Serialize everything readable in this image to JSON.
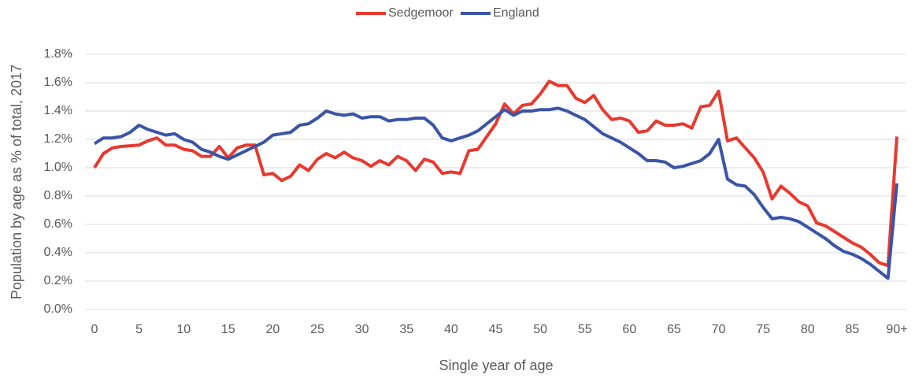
{
  "chart_data": {
    "type": "line",
    "x_label": "Single year of age",
    "y_label": "Population by age as % of total, 2017",
    "categories": [
      "0",
      null,
      null,
      null,
      null,
      "5",
      null,
      null,
      null,
      null,
      "10",
      null,
      null,
      null,
      null,
      "15",
      null,
      null,
      null,
      null,
      "20",
      null,
      null,
      null,
      null,
      "25",
      null,
      null,
      null,
      null,
      "30",
      null,
      null,
      null,
      null,
      "35",
      null,
      null,
      null,
      null,
      "40",
      null,
      null,
      null,
      null,
      "45",
      null,
      null,
      null,
      null,
      "50",
      null,
      null,
      null,
      null,
      "55",
      null,
      null,
      null,
      null,
      "60",
      null,
      null,
      null,
      null,
      "65",
      null,
      null,
      null,
      null,
      "70",
      null,
      null,
      null,
      null,
      "75",
      null,
      null,
      null,
      null,
      "80",
      null,
      null,
      null,
      null,
      "85",
      null,
      null,
      null,
      null,
      "90+"
    ],
    "series": [
      {
        "name": "Sedgemoor",
        "color": "#e8392f",
        "values": [
          1.0,
          1.1,
          1.14,
          1.15,
          1.155,
          1.16,
          1.19,
          1.21,
          1.16,
          1.16,
          1.13,
          1.12,
          1.08,
          1.08,
          1.15,
          1.07,
          1.14,
          1.16,
          1.16,
          0.95,
          0.96,
          0.91,
          0.94,
          1.02,
          0.98,
          1.06,
          1.1,
          1.07,
          1.11,
          1.07,
          1.05,
          1.01,
          1.05,
          1.02,
          1.08,
          1.05,
          0.98,
          1.06,
          1.04,
          0.96,
          0.97,
          0.96,
          1.12,
          1.13,
          1.22,
          1.31,
          1.45,
          1.38,
          1.44,
          1.45,
          1.52,
          1.61,
          1.58,
          1.58,
          1.49,
          1.46,
          1.51,
          1.41,
          1.34,
          1.35,
          1.33,
          1.25,
          1.26,
          1.33,
          1.3,
          1.3,
          1.31,
          1.28,
          1.43,
          1.44,
          1.54,
          1.19,
          1.21,
          1.14,
          1.07,
          0.97,
          0.78,
          0.87,
          0.82,
          0.76,
          0.73,
          0.61,
          0.59,
          0.55,
          0.51,
          0.47,
          0.44,
          0.39,
          0.33,
          0.31,
          1.22
        ]
      },
      {
        "name": "England",
        "color": "#3a54a6",
        "values": [
          1.17,
          1.21,
          1.21,
          1.22,
          1.25,
          1.3,
          1.27,
          1.25,
          1.23,
          1.24,
          1.2,
          1.18,
          1.13,
          1.11,
          1.08,
          1.06,
          1.09,
          1.12,
          1.15,
          1.18,
          1.23,
          1.24,
          1.25,
          1.3,
          1.31,
          1.35,
          1.4,
          1.38,
          1.37,
          1.38,
          1.35,
          1.36,
          1.36,
          1.33,
          1.34,
          1.34,
          1.35,
          1.35,
          1.3,
          1.21,
          1.19,
          1.21,
          1.23,
          1.26,
          1.31,
          1.36,
          1.41,
          1.37,
          1.4,
          1.4,
          1.41,
          1.41,
          1.42,
          1.4,
          1.37,
          1.34,
          1.29,
          1.24,
          1.21,
          1.18,
          1.14,
          1.1,
          1.05,
          1.05,
          1.04,
          1.0,
          1.01,
          1.03,
          1.05,
          1.1,
          1.2,
          0.92,
          0.88,
          0.87,
          0.81,
          0.72,
          0.64,
          0.65,
          0.64,
          0.62,
          0.58,
          0.54,
          0.5,
          0.45,
          0.41,
          0.39,
          0.36,
          0.32,
          0.27,
          0.22,
          0.89
        ]
      }
    ],
    "ylim": [
      0,
      1.8
    ],
    "yticks": [
      {
        "value": 0,
        "label": "0.0%"
      },
      {
        "value": 0.2,
        "label": "0.2%"
      },
      {
        "value": 0.4,
        "label": "0.4%"
      },
      {
        "value": 0.6,
        "label": "0.6%"
      },
      {
        "value": 0.8,
        "label": "0.8%"
      },
      {
        "value": 1.0,
        "label": "1.0%"
      },
      {
        "value": 1.2,
        "label": "1.2%"
      },
      {
        "value": 1.4,
        "label": "1.4%"
      },
      {
        "value": 1.6,
        "label": "1.6%"
      },
      {
        "value": 1.8,
        "label": "1.8%"
      }
    ],
    "grid": true,
    "legend": "top"
  }
}
